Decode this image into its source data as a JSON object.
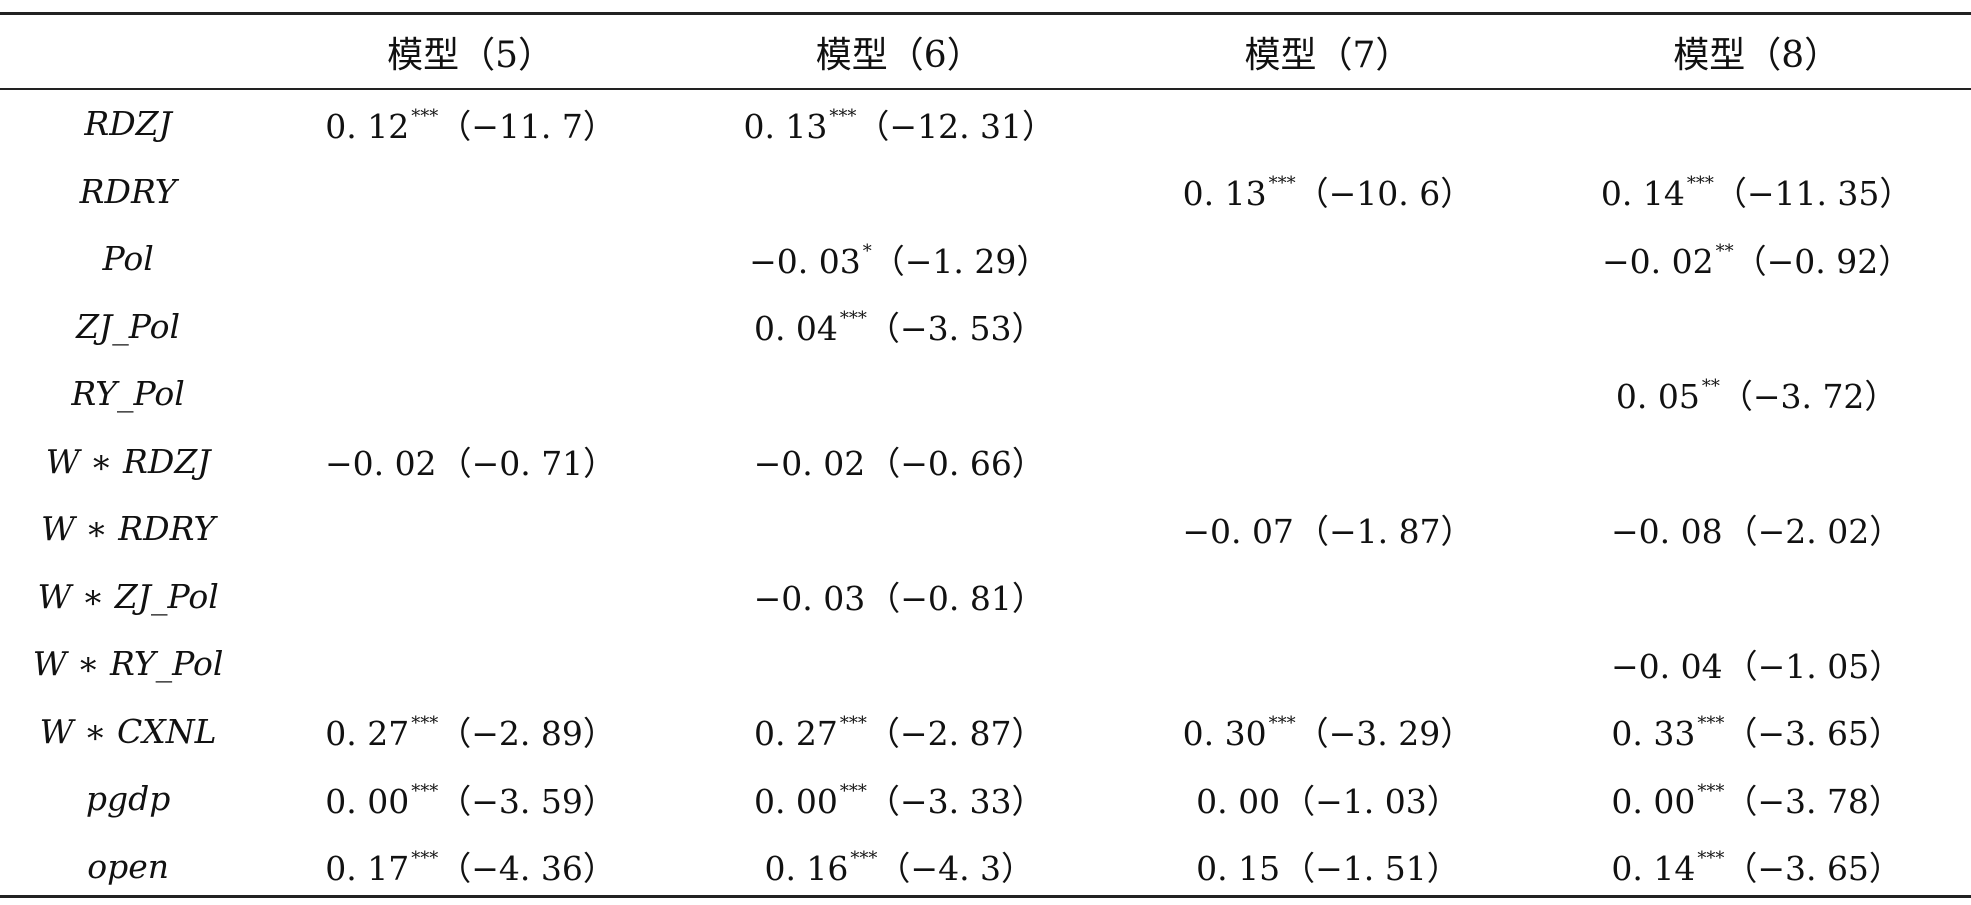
{
  "table": {
    "headers": [
      "",
      "模型（5）",
      "模型（6）",
      "模型（7）",
      "模型（8）"
    ],
    "rows": [
      {
        "var": "RDZJ",
        "cells": [
          {
            "v": "0. 12",
            "sig": "***",
            "t": "（−11. 7）"
          },
          {
            "v": "0. 13",
            "sig": "***",
            "t": "（−12. 31）"
          },
          {
            "v": "",
            "sig": "",
            "t": ""
          },
          {
            "v": "",
            "sig": "",
            "t": ""
          }
        ]
      },
      {
        "var": "RDRY",
        "cells": [
          {
            "v": "",
            "sig": "",
            "t": ""
          },
          {
            "v": "",
            "sig": "",
            "t": ""
          },
          {
            "v": "0. 13",
            "sig": "***",
            "t": "（−10. 6）"
          },
          {
            "v": "0. 14",
            "sig": "***",
            "t": "（−11. 35）"
          }
        ]
      },
      {
        "var": "Pol",
        "cells": [
          {
            "v": "",
            "sig": "",
            "t": ""
          },
          {
            "v": "−0. 03",
            "sig": "*",
            "t": "（−1. 29）"
          },
          {
            "v": "",
            "sig": "",
            "t": ""
          },
          {
            "v": "−0. 02",
            "sig": "**",
            "t": "（−0. 92）"
          }
        ]
      },
      {
        "var": "ZJ_Pol",
        "cells": [
          {
            "v": "",
            "sig": "",
            "t": ""
          },
          {
            "v": "0. 04",
            "sig": "***",
            "t": "（−3. 53）"
          },
          {
            "v": "",
            "sig": "",
            "t": ""
          },
          {
            "v": "",
            "sig": "",
            "t": ""
          }
        ]
      },
      {
        "var": "RY_Pol",
        "cells": [
          {
            "v": "",
            "sig": "",
            "t": ""
          },
          {
            "v": "",
            "sig": "",
            "t": ""
          },
          {
            "v": "",
            "sig": "",
            "t": ""
          },
          {
            "v": "0. 05",
            "sig": "**",
            "t": "（−3. 72）"
          }
        ]
      },
      {
        "var": "W ∗ RDZJ",
        "cells": [
          {
            "v": "−0. 02",
            "sig": "",
            "t": "（−0. 71）"
          },
          {
            "v": "−0. 02",
            "sig": "",
            "t": "（−0. 66）"
          },
          {
            "v": "",
            "sig": "",
            "t": ""
          },
          {
            "v": "",
            "sig": "",
            "t": ""
          }
        ]
      },
      {
        "var": "W ∗ RDRY",
        "cells": [
          {
            "v": "",
            "sig": "",
            "t": ""
          },
          {
            "v": "",
            "sig": "",
            "t": ""
          },
          {
            "v": "−0. 07",
            "sig": "",
            "t": "（−1. 87）"
          },
          {
            "v": "−0. 08",
            "sig": "",
            "t": "（−2. 02）"
          }
        ]
      },
      {
        "var": "W ∗ ZJ_Pol",
        "cells": [
          {
            "v": "",
            "sig": "",
            "t": ""
          },
          {
            "v": "−0. 03",
            "sig": "",
            "t": "（−0. 81）"
          },
          {
            "v": "",
            "sig": "",
            "t": ""
          },
          {
            "v": "",
            "sig": "",
            "t": ""
          }
        ]
      },
      {
        "var": "W ∗ RY_Pol",
        "cells": [
          {
            "v": "",
            "sig": "",
            "t": ""
          },
          {
            "v": "",
            "sig": "",
            "t": ""
          },
          {
            "v": "",
            "sig": "",
            "t": ""
          },
          {
            "v": "−0. 04",
            "sig": "",
            "t": "（−1. 05）"
          }
        ]
      },
      {
        "var": "W ∗ CXNL",
        "cells": [
          {
            "v": "0. 27",
            "sig": "***",
            "t": "（−2. 89）"
          },
          {
            "v": "0. 27",
            "sig": "***",
            "t": "（−2. 87）"
          },
          {
            "v": "0. 30",
            "sig": "***",
            "t": "（−3. 29）"
          },
          {
            "v": "0. 33",
            "sig": "***",
            "t": "（−3. 65）"
          }
        ]
      },
      {
        "var": "pgdp",
        "cells": [
          {
            "v": "0. 00",
            "sig": "***",
            "t": "（−3. 59）"
          },
          {
            "v": "0. 00",
            "sig": "***",
            "t": "（−3. 33）"
          },
          {
            "v": "0. 00",
            "sig": "",
            "t": "（−1. 03）"
          },
          {
            "v": "0. 00",
            "sig": "***",
            "t": "（−3. 78）"
          }
        ]
      },
      {
        "var": "open",
        "cells": [
          {
            "v": "0. 17",
            "sig": "***",
            "t": "（−4. 36）"
          },
          {
            "v": "0. 16",
            "sig": "***",
            "t": "（−4. 3）"
          },
          {
            "v": "0. 15",
            "sig": "",
            "t": "（−1. 51）"
          },
          {
            "v": "0. 14",
            "sig": "***",
            "t": "（−3. 65）"
          }
        ]
      }
    ]
  }
}
